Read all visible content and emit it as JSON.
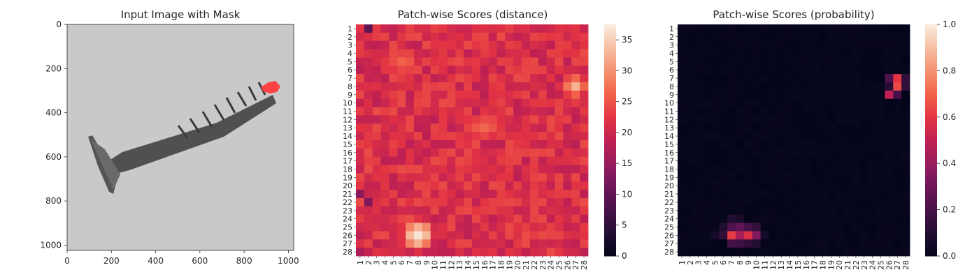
{
  "figure": {
    "panels": [
      {
        "title": "Input Image with Mask"
      },
      {
        "title": "Patch-wise Scores (distance)"
      },
      {
        "title": "Patch-wise Scores (probability)"
      }
    ]
  },
  "chart_data": [
    {
      "type": "image",
      "title": "Input Image with Mask",
      "xlabel": "",
      "ylabel": "",
      "xlim": [
        0,
        1024
      ],
      "ylim": [
        1024,
        0
      ],
      "x_ticks": [
        0,
        200,
        400,
        600,
        800,
        1000
      ],
      "y_ticks": [
        0,
        200,
        400,
        600,
        800,
        1000
      ],
      "image_description": "grayscale screw on light grey background",
      "object": {
        "name": "screw",
        "head_center": [
          150,
          640
        ],
        "head_endpoints": [
          [
            100,
            510
          ],
          [
            210,
            760
          ]
        ],
        "shaft_start": [
          225,
          560
        ],
        "thread_start": [
          500,
          430
        ],
        "tip": [
          920,
          285
        ]
      },
      "mask": {
        "color": "#ff3b3b",
        "region_center": [
          910,
          285
        ]
      },
      "colors": {
        "background": "#c8c8c8",
        "screw": "#4d4d4d"
      }
    },
    {
      "type": "heatmap",
      "title": "Patch-wise Scores (distance)",
      "x_categories": [
        "1",
        "2",
        "3",
        "4",
        "5",
        "6",
        "7",
        "8",
        "9",
        "10",
        "11",
        "12",
        "13",
        "14",
        "15",
        "16",
        "17",
        "18",
        "19",
        "20",
        "21",
        "22",
        "23",
        "24",
        "25",
        "26",
        "27",
        "28"
      ],
      "y_categories": [
        "1",
        "2",
        "3",
        "4",
        "5",
        "6",
        "7",
        "8",
        "9",
        "10",
        "11",
        "12",
        "13",
        "14",
        "15",
        "16",
        "17",
        "18",
        "19",
        "20",
        "21",
        "22",
        "23",
        "24",
        "25",
        "26",
        "27",
        "28"
      ],
      "colormap": "rocket",
      "colorbar": {
        "min": 0,
        "max": 37.5,
        "ticks": [
          0,
          5,
          10,
          15,
          20,
          25,
          30,
          35
        ]
      },
      "hotspots": [
        {
          "x": 27,
          "y": 8,
          "value": 33,
          "spread": 1.6
        },
        {
          "x": 8,
          "y": 26,
          "value": 37,
          "spread": 2.0
        },
        {
          "x": 16,
          "y": 13,
          "value": 27.5,
          "spread": 2.2
        },
        {
          "x": 6,
          "y": 5,
          "value": 26,
          "spread": 3.0
        }
      ],
      "base_value": 21.5,
      "low_spots": [
        {
          "x": 2,
          "y": 1,
          "value": 10
        },
        {
          "x": 1,
          "y": 21,
          "value": 14
        },
        {
          "x": 2,
          "y": 22,
          "value": 13
        },
        {
          "x": 1,
          "y": 28,
          "value": 17
        }
      ]
    },
    {
      "type": "heatmap",
      "title": "Patch-wise Scores (probability)",
      "x_categories": [
        "1",
        "2",
        "3",
        "4",
        "5",
        "6",
        "7",
        "8",
        "9",
        "10",
        "11",
        "12",
        "13",
        "14",
        "15",
        "16",
        "17",
        "18",
        "19",
        "20",
        "21",
        "22",
        "23",
        "24",
        "25",
        "26",
        "27",
        "28"
      ],
      "y_categories": [
        "1",
        "2",
        "3",
        "4",
        "5",
        "6",
        "7",
        "8",
        "9",
        "10",
        "11",
        "12",
        "13",
        "14",
        "15",
        "16",
        "17",
        "18",
        "19",
        "20",
        "21",
        "22",
        "23",
        "24",
        "25",
        "26",
        "27",
        "28"
      ],
      "colormap": "rocket",
      "colorbar": {
        "min": 0,
        "max": 1.0,
        "ticks": [
          "0.0",
          "0.2",
          "0.4",
          "0.6",
          "0.8",
          "1.0"
        ]
      },
      "hotspots": [
        {
          "x": 27,
          "y": 7,
          "value": 0.6
        },
        {
          "x": 27,
          "y": 8,
          "value": 0.65
        },
        {
          "x": 26,
          "y": 9,
          "value": 0.5
        },
        {
          "x": 26,
          "y": 7,
          "value": 0.22
        },
        {
          "x": 27,
          "y": 9,
          "value": 0.2
        },
        {
          "x": 28,
          "y": 7,
          "value": 0.14
        },
        {
          "x": 28,
          "y": 8,
          "value": 0.14
        },
        {
          "x": 26,
          "y": 8,
          "value": 0.12
        },
        {
          "x": 7,
          "y": 25,
          "value": 0.22
        },
        {
          "x": 7,
          "y": 26,
          "value": 0.62
        },
        {
          "x": 8,
          "y": 26,
          "value": 0.45
        },
        {
          "x": 9,
          "y": 26,
          "value": 0.58
        },
        {
          "x": 10,
          "y": 26,
          "value": 0.35
        },
        {
          "x": 8,
          "y": 25,
          "value": 0.28
        },
        {
          "x": 9,
          "y": 25,
          "value": 0.2
        },
        {
          "x": 10,
          "y": 25,
          "value": 0.15
        },
        {
          "x": 6,
          "y": 26,
          "value": 0.14
        },
        {
          "x": 6,
          "y": 25,
          "value": 0.1
        },
        {
          "x": 7,
          "y": 27,
          "value": 0.2
        },
        {
          "x": 8,
          "y": 27,
          "value": 0.18
        },
        {
          "x": 9,
          "y": 27,
          "value": 0.14
        },
        {
          "x": 10,
          "y": 27,
          "value": 0.1
        },
        {
          "x": 7,
          "y": 24,
          "value": 0.1
        },
        {
          "x": 8,
          "y": 24,
          "value": 0.08
        },
        {
          "x": 11,
          "y": 26,
          "value": 0.06
        },
        {
          "x": 5,
          "y": 26,
          "value": 0.06
        }
      ],
      "base_value": 0.02
    }
  ]
}
